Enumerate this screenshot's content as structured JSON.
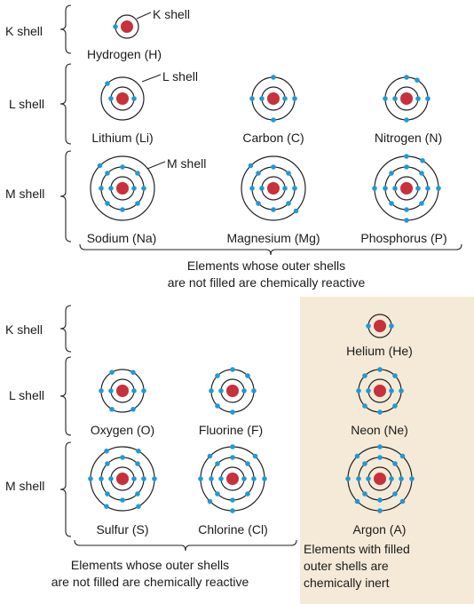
{
  "colors": {
    "nucleus": "#c8303a",
    "electron": "#1f9ad6",
    "orbit": "#222222",
    "inert_panel": "#f4ead7"
  },
  "top": {
    "shell_labels": {
      "k": "K shell",
      "l": "L shell",
      "m": "M shell"
    },
    "callouts": {
      "k": "K shell",
      "l": "L shell",
      "m": "M shell"
    },
    "atoms": [
      {
        "name": "Hydrogen (H)",
        "shells": [
          1
        ]
      },
      {
        "name": "Lithium (Li)",
        "shells": [
          2,
          1
        ]
      },
      {
        "name": "Carbon (C)",
        "shells": [
          2,
          4
        ]
      },
      {
        "name": "Nitrogen (N)",
        "shells": [
          2,
          5
        ]
      },
      {
        "name": "Sodium (Na)",
        "shells": [
          2,
          8,
          1
        ]
      },
      {
        "name": "Magnesium (Mg)",
        "shells": [
          2,
          8,
          2
        ]
      },
      {
        "name": "Phosphorus (P)",
        "shells": [
          2,
          8,
          5
        ]
      }
    ],
    "caption_line1": "Elements whose outer shells",
    "caption_line2": "are not filled are chemically reactive"
  },
  "bottom": {
    "shell_labels": {
      "k": "K shell",
      "l": "L shell",
      "m": "M shell"
    },
    "atoms": [
      {
        "name": "Oxygen (O)",
        "shells": [
          2,
          6
        ]
      },
      {
        "name": "Fluorine (F)",
        "shells": [
          2,
          7
        ]
      },
      {
        "name": "Sulfur (S)",
        "shells": [
          2,
          8,
          6
        ]
      },
      {
        "name": "Chlorine (Cl)",
        "shells": [
          2,
          8,
          7
        ]
      }
    ],
    "caption_line1": "Elements whose outer shells",
    "caption_line2": "are not filled are chemically reactive"
  },
  "inert": {
    "atoms": [
      {
        "name": "Helium (He)",
        "shells": [
          2
        ]
      },
      {
        "name": "Neon (Ne)",
        "shells": [
          2,
          8
        ]
      },
      {
        "name": "Argon (A)",
        "shells": [
          2,
          8,
          8
        ]
      }
    ],
    "caption_line1": "Elements with filled",
    "caption_line2": "outer shells are",
    "caption_line3": "chemically inert"
  }
}
